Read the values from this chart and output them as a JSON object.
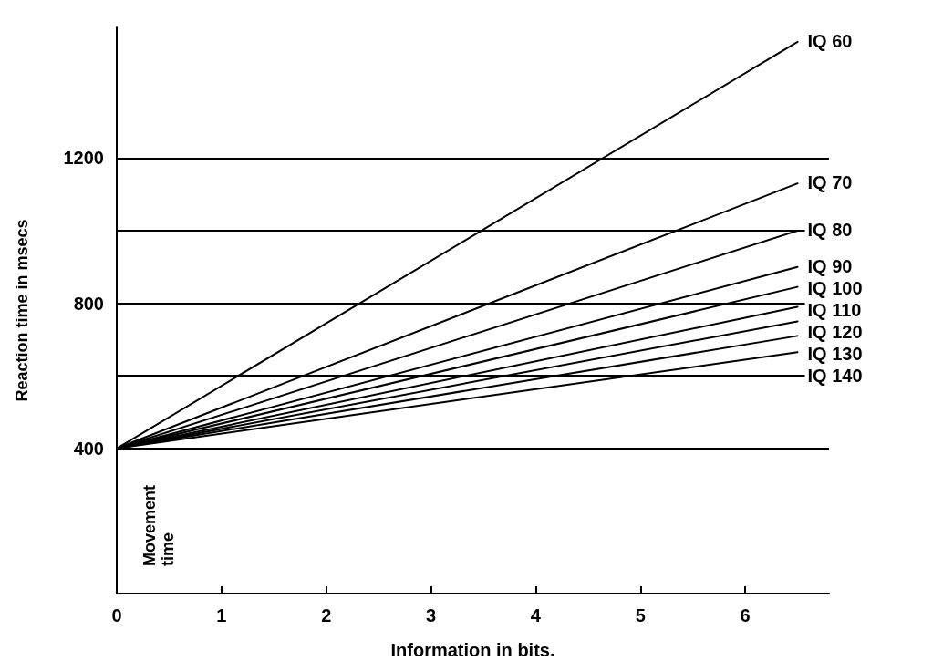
{
  "chart_data": {
    "type": "line",
    "xlabel": "Information in bits.",
    "ylabel": "Reaction time in msecs",
    "x": [
      0,
      6.5
    ],
    "series": [
      {
        "name": "IQ 60",
        "color": "#000000",
        "values": [
          400,
          1520
        ]
      },
      {
        "name": "IQ 70",
        "color": "#000000",
        "values": [
          400,
          1130
        ]
      },
      {
        "name": "IQ 80",
        "color": "#000000",
        "values": [
          400,
          1000
        ]
      },
      {
        "name": "IQ 90",
        "color": "#000000",
        "values": [
          400,
          900
        ]
      },
      {
        "name": "IQ 100",
        "color": "#000000",
        "values": [
          400,
          845
        ]
      },
      {
        "name": "IQ 110",
        "color": "#000000",
        "values": [
          400,
          790
        ]
      },
      {
        "name": "IQ 120",
        "color": "#000000",
        "values": [
          400,
          750
        ]
      },
      {
        "name": "IQ 130",
        "color": "#000000",
        "values": [
          400,
          710
        ]
      },
      {
        "name": "IQ 140",
        "color": "#000000",
        "values": [
          400,
          665
        ]
      }
    ],
    "xlim": [
      0,
      6.8
    ],
    "xticks": [
      0,
      1,
      2,
      3,
      4,
      5,
      6
    ],
    "ylim": [
      0,
      1560
    ],
    "yticks": [
      {
        "value": 0,
        "label": null
      },
      400,
      {
        "value": 600,
        "label": null
      },
      800,
      {
        "value": 1000,
        "label": null
      },
      1200
    ],
    "grid": "y",
    "marker": "none",
    "line_style": "solid",
    "legend": false,
    "annotations": [
      "Movement time"
    ]
  }
}
